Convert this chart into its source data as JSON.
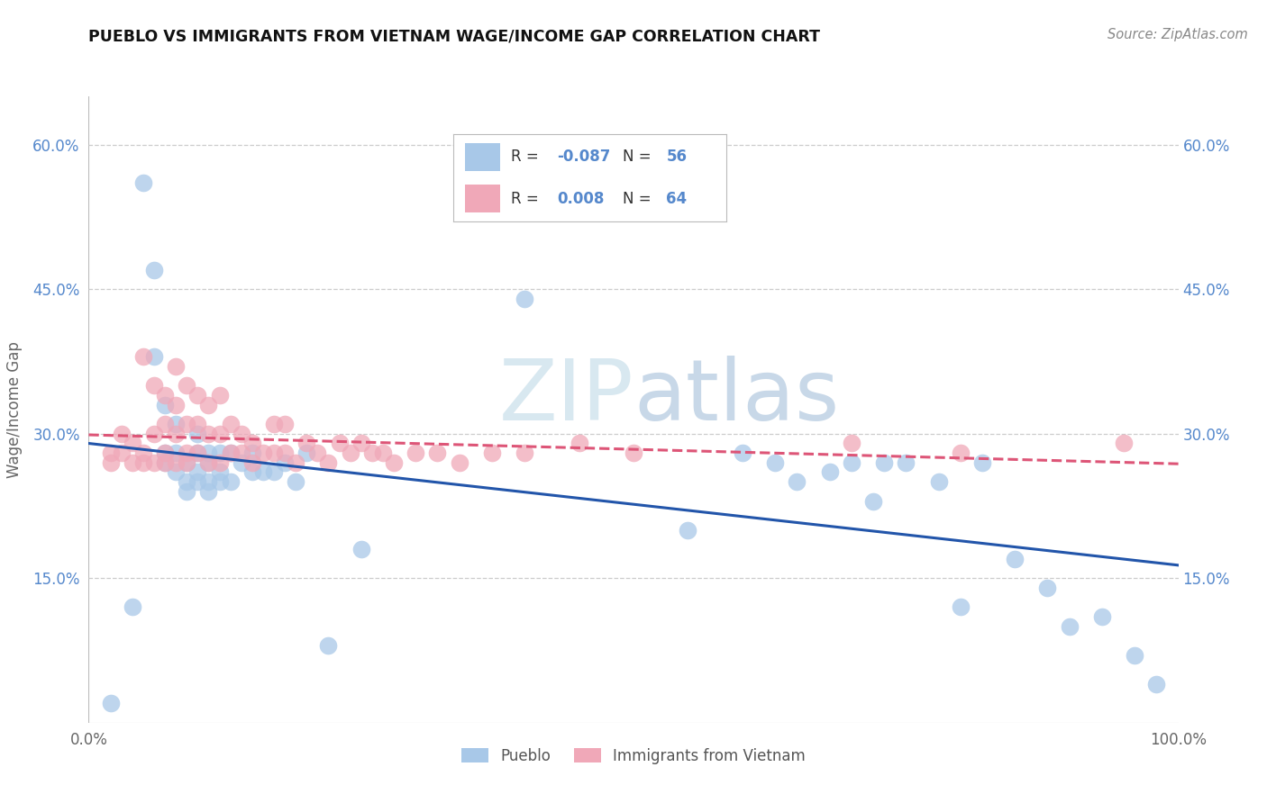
{
  "title": "PUEBLO VS IMMIGRANTS FROM VIETNAM WAGE/INCOME GAP CORRELATION CHART",
  "source": "Source: ZipAtlas.com",
  "ylabel": "Wage/Income Gap",
  "xlim": [
    0,
    1.0
  ],
  "ylim": [
    0,
    0.65
  ],
  "yticks": [
    0.15,
    0.3,
    0.45,
    0.6
  ],
  "ytick_labels": [
    "15.0%",
    "30.0%",
    "45.0%",
    "60.0%"
  ],
  "xtick_labels": [
    "0.0%",
    "100.0%"
  ],
  "pueblo_R": "-0.087",
  "pueblo_N": "56",
  "vietnam_R": "0.008",
  "vietnam_N": "64",
  "pueblo_color": "#a8c8e8",
  "vietnam_color": "#f0a8b8",
  "pueblo_line_color": "#2255aa",
  "vietnam_line_color": "#dd5577",
  "watermark_color": "#d8e8f0",
  "background_color": "#ffffff",
  "grid_color": "#cccccc",
  "pueblo_x": [
    0.02,
    0.04,
    0.05,
    0.06,
    0.06,
    0.07,
    0.07,
    0.07,
    0.08,
    0.08,
    0.08,
    0.09,
    0.09,
    0.09,
    0.1,
    0.1,
    0.1,
    0.1,
    0.11,
    0.11,
    0.11,
    0.11,
    0.12,
    0.12,
    0.12,
    0.13,
    0.13,
    0.14,
    0.15,
    0.15,
    0.16,
    0.17,
    0.18,
    0.19,
    0.2,
    0.22,
    0.25,
    0.4,
    0.55,
    0.6,
    0.63,
    0.65,
    0.68,
    0.7,
    0.72,
    0.73,
    0.75,
    0.78,
    0.8,
    0.82,
    0.85,
    0.88,
    0.9,
    0.93,
    0.96,
    0.98
  ],
  "pueblo_y": [
    0.02,
    0.12,
    0.56,
    0.47,
    0.38,
    0.33,
    0.28,
    0.27,
    0.31,
    0.28,
    0.26,
    0.27,
    0.25,
    0.24,
    0.3,
    0.28,
    0.26,
    0.25,
    0.28,
    0.27,
    0.25,
    0.24,
    0.28,
    0.26,
    0.25,
    0.28,
    0.25,
    0.27,
    0.26,
    0.28,
    0.26,
    0.26,
    0.27,
    0.25,
    0.28,
    0.08,
    0.18,
    0.44,
    0.2,
    0.28,
    0.27,
    0.25,
    0.26,
    0.27,
    0.23,
    0.27,
    0.27,
    0.25,
    0.12,
    0.27,
    0.17,
    0.14,
    0.1,
    0.11,
    0.07,
    0.04
  ],
  "vietnam_x": [
    0.02,
    0.02,
    0.03,
    0.03,
    0.04,
    0.04,
    0.05,
    0.05,
    0.05,
    0.06,
    0.06,
    0.06,
    0.07,
    0.07,
    0.07,
    0.07,
    0.08,
    0.08,
    0.08,
    0.08,
    0.09,
    0.09,
    0.09,
    0.09,
    0.1,
    0.1,
    0.1,
    0.11,
    0.11,
    0.11,
    0.12,
    0.12,
    0.12,
    0.13,
    0.13,
    0.14,
    0.14,
    0.15,
    0.15,
    0.16,
    0.17,
    0.17,
    0.18,
    0.18,
    0.19,
    0.2,
    0.21,
    0.22,
    0.23,
    0.24,
    0.25,
    0.26,
    0.27,
    0.28,
    0.3,
    0.32,
    0.34,
    0.37,
    0.4,
    0.45,
    0.5,
    0.7,
    0.8,
    0.95
  ],
  "vietnam_y": [
    0.28,
    0.27,
    0.3,
    0.28,
    0.29,
    0.27,
    0.38,
    0.28,
    0.27,
    0.35,
    0.3,
    0.27,
    0.34,
    0.31,
    0.28,
    0.27,
    0.37,
    0.33,
    0.3,
    0.27,
    0.35,
    0.31,
    0.28,
    0.27,
    0.34,
    0.31,
    0.28,
    0.33,
    0.3,
    0.27,
    0.34,
    0.3,
    0.27,
    0.31,
    0.28,
    0.3,
    0.28,
    0.29,
    0.27,
    0.28,
    0.31,
    0.28,
    0.31,
    0.28,
    0.27,
    0.29,
    0.28,
    0.27,
    0.29,
    0.28,
    0.29,
    0.28,
    0.28,
    0.27,
    0.28,
    0.28,
    0.27,
    0.28,
    0.28,
    0.29,
    0.28,
    0.29,
    0.28,
    0.29
  ]
}
